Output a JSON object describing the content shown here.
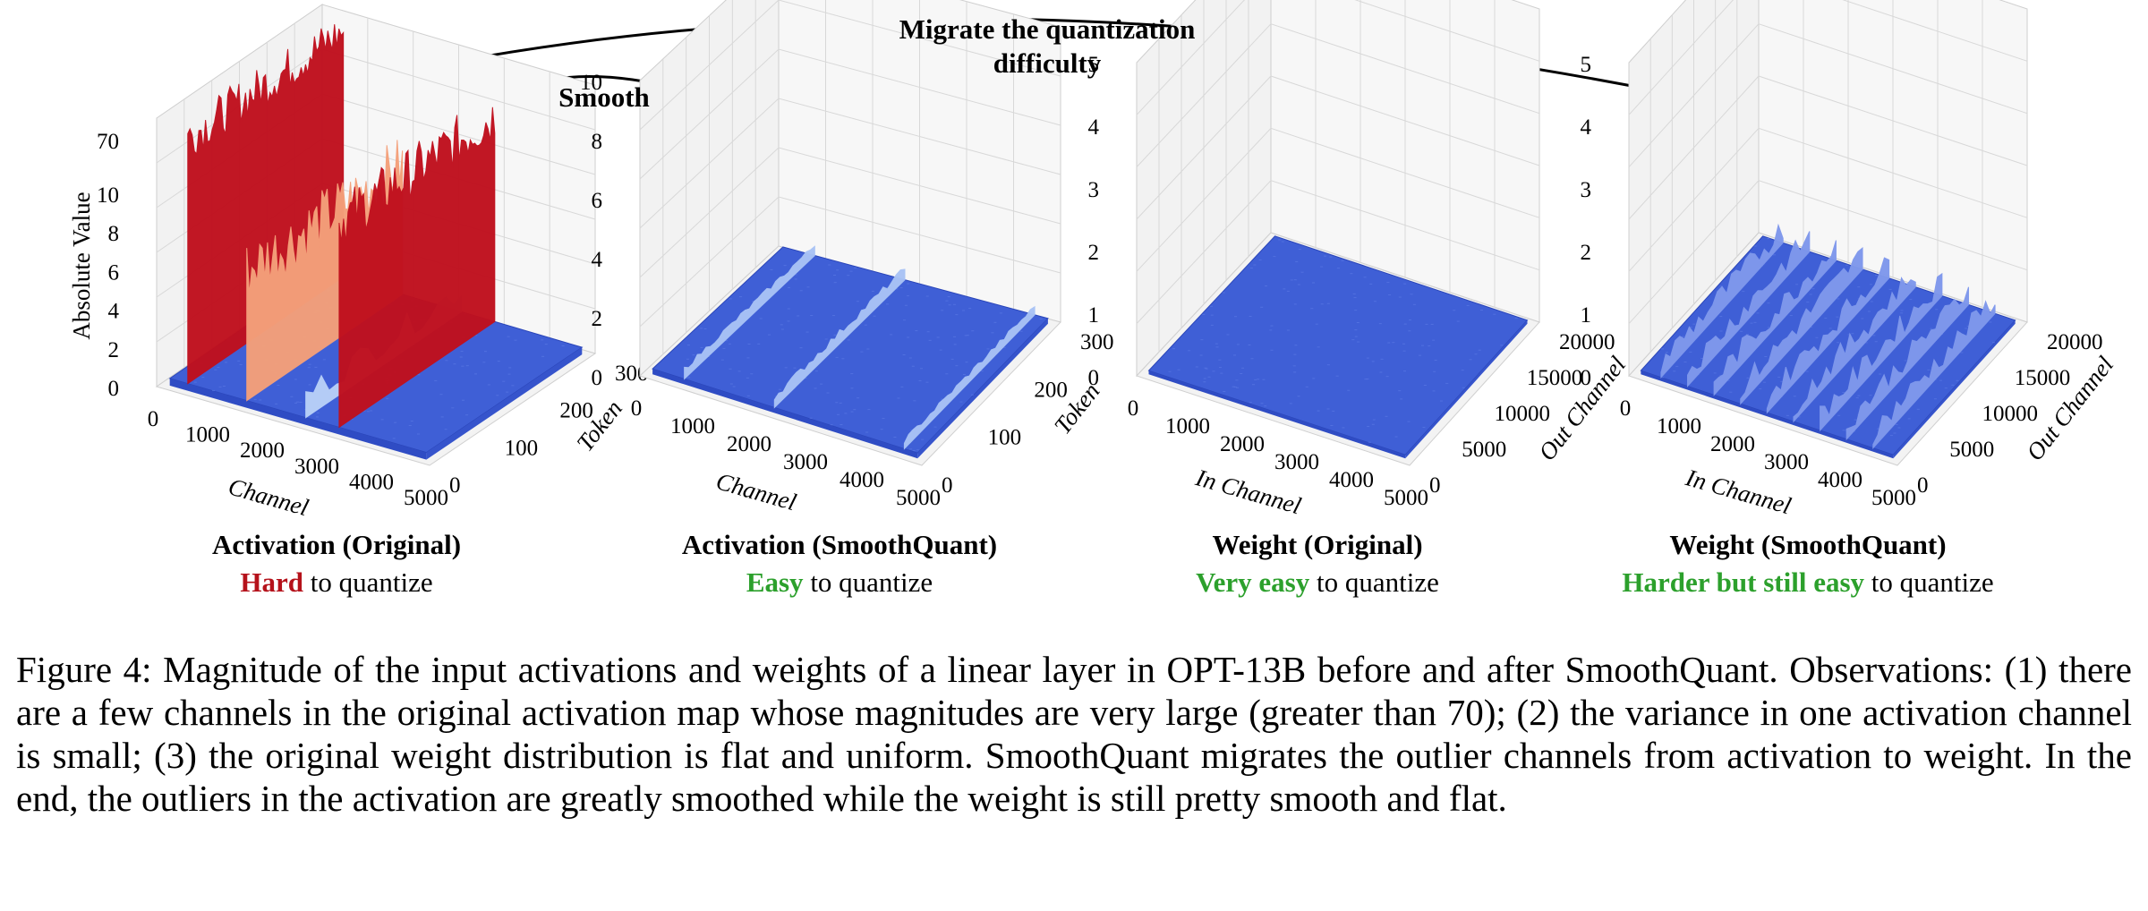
{
  "annotations": {
    "migrate_line1": "Migrate the quantization",
    "migrate_line2": "difficulty",
    "smooth": "Smooth"
  },
  "panels": [
    {
      "title": "Activation (Original)",
      "quality": "Hard",
      "suffix": " to quantize",
      "quality_color": "#b5121b",
      "zlabel": "Absolute Value",
      "zticks": [
        "0",
        "2",
        "4",
        "6",
        "8",
        "10",
        "70"
      ],
      "xlabel": "Channel",
      "xticks": [
        "0",
        "1000",
        "2000",
        "3000",
        "4000",
        "5000"
      ],
      "ylabel": "Token",
      "yticks": [
        "0",
        "100",
        "200",
        "300"
      ]
    },
    {
      "title": "Activation (SmoothQuant)",
      "quality": "Easy",
      "suffix": " to quantize",
      "quality_color": "#2ca02c",
      "zticks": [
        "0",
        "2",
        "4",
        "6",
        "8",
        "10"
      ],
      "xlabel": "Channel",
      "xticks": [
        "0",
        "1000",
        "2000",
        "3000",
        "4000",
        "5000"
      ],
      "ylabel": "Token",
      "yticks": [
        "0",
        "100",
        "200",
        "300"
      ]
    },
    {
      "title": "Weight (Original)",
      "quality": "Very easy",
      "suffix": " to quantize",
      "quality_color": "#2ca02c",
      "zticks": [
        "0",
        "1",
        "2",
        "3",
        "4",
        "5"
      ],
      "xlabel": "In Channel",
      "xticks": [
        "0",
        "1000",
        "2000",
        "3000",
        "4000",
        "5000"
      ],
      "ylabel": "Out Channel",
      "yticks": [
        "0",
        "5000",
        "10000",
        "15000",
        "20000"
      ]
    },
    {
      "title": "Weight (SmoothQuant)",
      "quality": "Harder but still easy",
      "suffix": " to quantize",
      "quality_color": "#2ca02c",
      "zticks": [
        "0",
        "1",
        "2",
        "3",
        "4",
        "5"
      ],
      "xlabel": "In Channel",
      "xticks": [
        "0",
        "1000",
        "2000",
        "3000",
        "4000",
        "5000"
      ],
      "ylabel": "Out Channel",
      "yticks": [
        "0",
        "5000",
        "10000",
        "15000",
        "20000"
      ]
    }
  ],
  "caption": "Figure 4: Magnitude of the input activations and weights of a linear layer in OPT-13B before and after SmoothQuant. Observations: (1) there are a few channels in the original activation map whose magnitudes are very large (greater than 70); (2) the variance in one activation channel is small; (3) the original weight distribution is flat and uniform. SmoothQuant migrates the outlier channels from activation to weight. In the end, the outliers in the activation are greatly smoothed while the weight is still pretty smooth and flat.",
  "colors": {
    "surface_base": "#3f5fd6",
    "outlier_red": "#c0101e",
    "outlier_orange": "#f4a07a",
    "pane_grid": "#d8d8d8",
    "light_stripe": "#a9c3f5"
  }
}
